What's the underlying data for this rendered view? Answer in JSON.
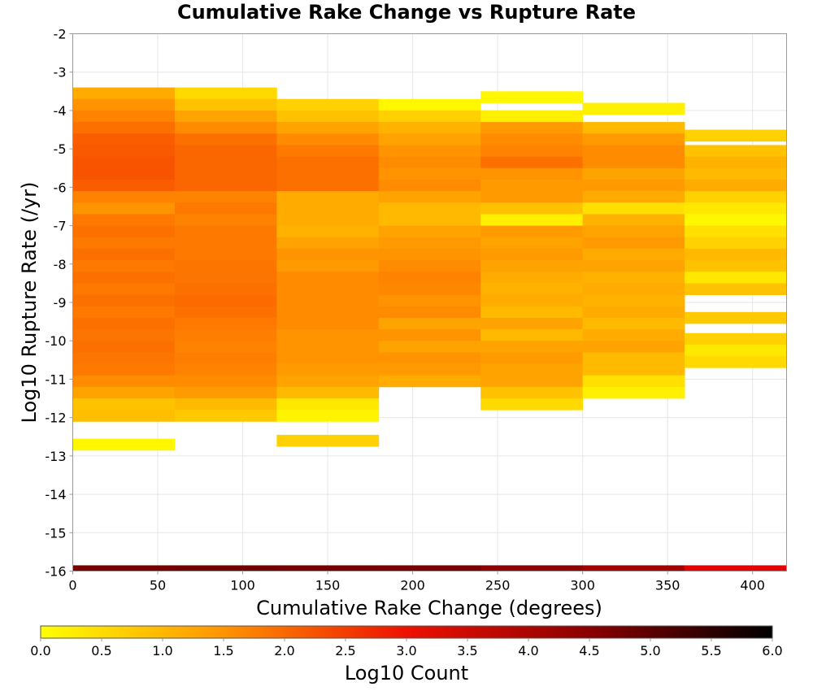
{
  "chart_data": {
    "type": "heatmap",
    "title": "Cumulative Rake Change vs Rupture Rate",
    "xlabel": "Cumulative Rake Change (degrees)",
    "ylabel": "Log10 Rupture Rate (/yr)",
    "xlim": [
      0,
      420
    ],
    "ylim": [
      -16,
      -2
    ],
    "x_ticks": [
      "0",
      "50",
      "100",
      "150",
      "200",
      "250",
      "300",
      "350",
      "400"
    ],
    "y_ticks": [
      "-2",
      "-3",
      "-4",
      "-5",
      "-6",
      "-7",
      "-8",
      "-9",
      "-10",
      "-11",
      "-12",
      "-13",
      "-14",
      "-15",
      "-16"
    ],
    "grid": true,
    "x_bin_width_degrees": 60,
    "y_bin_height_log10": 0.3,
    "colorbar": {
      "label": "Log10 Count",
      "range": [
        0,
        6
      ],
      "ticks": [
        "0.0",
        "0.5",
        "1.0",
        "1.5",
        "2.0",
        "2.5",
        "3.0",
        "3.5",
        "4.0",
        "4.5",
        "5.0",
        "5.5",
        "6.0"
      ],
      "colors": [
        "#ffff00",
        "#ff8c00",
        "#ee0000",
        "#880000",
        "#000000"
      ]
    },
    "columns": [
      {
        "x_start": 0,
        "x_end": 60,
        "cells": [
          [
            -3.55,
            1.1
          ],
          [
            -3.85,
            1.4
          ],
          [
            -4.15,
            1.6
          ],
          [
            -4.45,
            1.8
          ],
          [
            -4.75,
            2.0
          ],
          [
            -5.05,
            2.05
          ],
          [
            -5.35,
            2.1
          ],
          [
            -5.65,
            2.1
          ],
          [
            -5.95,
            2.0
          ],
          [
            -6.25,
            1.6
          ],
          [
            -6.55,
            1.4
          ],
          [
            -6.85,
            1.7
          ],
          [
            -7.15,
            1.8
          ],
          [
            -7.45,
            1.7
          ],
          [
            -7.75,
            1.8
          ],
          [
            -8.05,
            1.7
          ],
          [
            -8.35,
            1.8
          ],
          [
            -8.65,
            1.7
          ],
          [
            -8.95,
            1.8
          ],
          [
            -9.25,
            1.7
          ],
          [
            -9.55,
            1.8
          ],
          [
            -9.85,
            1.75
          ],
          [
            -10.15,
            1.8
          ],
          [
            -10.45,
            1.75
          ],
          [
            -10.75,
            1.7
          ],
          [
            -11.05,
            1.5
          ],
          [
            -11.35,
            1.2
          ],
          [
            -11.65,
            0.8
          ],
          [
            -11.95,
            0.85
          ],
          [
            -12.7,
            0.1
          ]
        ]
      },
      {
        "x_start": 60,
        "x_end": 120,
        "cells": [
          [
            -3.55,
            0.5
          ],
          [
            -3.85,
            0.8
          ],
          [
            -4.15,
            1.2
          ],
          [
            -4.45,
            1.5
          ],
          [
            -4.75,
            1.8
          ],
          [
            -5.05,
            1.9
          ],
          [
            -5.35,
            1.9
          ],
          [
            -5.65,
            1.9
          ],
          [
            -5.95,
            1.9
          ],
          [
            -6.25,
            1.6
          ],
          [
            -6.55,
            1.7
          ],
          [
            -6.85,
            1.6
          ],
          [
            -7.15,
            1.7
          ],
          [
            -7.45,
            1.7
          ],
          [
            -7.75,
            1.7
          ],
          [
            -8.05,
            1.75
          ],
          [
            -8.35,
            1.75
          ],
          [
            -8.65,
            1.8
          ],
          [
            -8.95,
            1.85
          ],
          [
            -9.25,
            1.8
          ],
          [
            -9.55,
            1.7
          ],
          [
            -9.85,
            1.65
          ],
          [
            -10.15,
            1.6
          ],
          [
            -10.45,
            1.65
          ],
          [
            -10.75,
            1.6
          ],
          [
            -11.05,
            1.5
          ],
          [
            -11.35,
            1.3
          ],
          [
            -11.65,
            0.9
          ],
          [
            -11.95,
            0.7
          ]
        ]
      },
      {
        "x_start": 120,
        "x_end": 180,
        "cells": [
          [
            -3.85,
            0.6
          ],
          [
            -4.15,
            0.8
          ],
          [
            -4.45,
            1.2
          ],
          [
            -4.75,
            1.5
          ],
          [
            -5.05,
            1.7
          ],
          [
            -5.35,
            1.8
          ],
          [
            -5.65,
            1.8
          ],
          [
            -5.95,
            1.8
          ],
          [
            -6.25,
            1.1
          ],
          [
            -6.55,
            1.1
          ],
          [
            -6.85,
            1.1
          ],
          [
            -7.15,
            1.0
          ],
          [
            -7.45,
            1.2
          ],
          [
            -7.75,
            1.4
          ],
          [
            -8.05,
            1.3
          ],
          [
            -8.35,
            1.5
          ],
          [
            -8.65,
            1.5
          ],
          [
            -8.95,
            1.5
          ],
          [
            -9.25,
            1.5
          ],
          [
            -9.55,
            1.5
          ],
          [
            -9.85,
            1.4
          ],
          [
            -10.15,
            1.4
          ],
          [
            -10.45,
            1.4
          ],
          [
            -10.75,
            1.3
          ],
          [
            -11.05,
            1.2
          ],
          [
            -11.35,
            0.9
          ],
          [
            -11.65,
            0.3
          ],
          [
            -11.95,
            0.15
          ],
          [
            -12.6,
            0.6
          ]
        ]
      },
      {
        "x_start": 180,
        "x_end": 240,
        "cells": [
          [
            -3.85,
            0.1
          ],
          [
            -4.15,
            0.6
          ],
          [
            -4.45,
            1.0
          ],
          [
            -4.75,
            1.2
          ],
          [
            -5.05,
            1.4
          ],
          [
            -5.35,
            1.5
          ],
          [
            -5.65,
            1.4
          ],
          [
            -5.95,
            1.5
          ],
          [
            -6.25,
            1.2
          ],
          [
            -6.55,
            0.9
          ],
          [
            -6.85,
            0.9
          ],
          [
            -7.15,
            1.2
          ],
          [
            -7.45,
            1.3
          ],
          [
            -7.75,
            1.4
          ],
          [
            -8.05,
            1.5
          ],
          [
            -8.35,
            1.6
          ],
          [
            -8.65,
            1.55
          ],
          [
            -8.95,
            1.4
          ],
          [
            -9.25,
            1.5
          ],
          [
            -9.55,
            1.2
          ],
          [
            -9.85,
            1.4
          ],
          [
            -10.15,
            1.2
          ],
          [
            -10.45,
            1.4
          ],
          [
            -10.75,
            1.3
          ],
          [
            -11.05,
            1.1
          ]
        ]
      },
      {
        "x_start": 240,
        "x_end": 300,
        "cells": [
          [
            -3.65,
            0.1
          ],
          [
            -4.15,
            0.2
          ],
          [
            -4.45,
            1.3
          ],
          [
            -4.75,
            1.5
          ],
          [
            -5.05,
            1.6
          ],
          [
            -5.35,
            1.8
          ],
          [
            -5.65,
            1.4
          ],
          [
            -5.95,
            1.3
          ],
          [
            -6.25,
            1.3
          ],
          [
            -6.55,
            0.8
          ],
          [
            -6.85,
            0.2
          ],
          [
            -7.15,
            1.3
          ],
          [
            -7.45,
            1.2
          ],
          [
            -7.75,
            1.3
          ],
          [
            -8.05,
            1.2
          ],
          [
            -8.35,
            1.1
          ],
          [
            -8.65,
            1.0
          ],
          [
            -8.95,
            1.1
          ],
          [
            -9.25,
            0.9
          ],
          [
            -9.55,
            1.2
          ],
          [
            -9.85,
            0.9
          ],
          [
            -10.15,
            1.2
          ],
          [
            -10.45,
            1.3
          ],
          [
            -10.75,
            1.2
          ],
          [
            -11.05,
            1.2
          ],
          [
            -11.35,
            0.8
          ],
          [
            -11.65,
            0.5
          ]
        ]
      },
      {
        "x_start": 300,
        "x_end": 360,
        "cells": [
          [
            -3.95,
            0.2
          ],
          [
            -4.45,
            0.9
          ],
          [
            -4.75,
            1.3
          ],
          [
            -5.05,
            1.5
          ],
          [
            -5.35,
            1.5
          ],
          [
            -5.65,
            1.2
          ],
          [
            -5.95,
            1.3
          ],
          [
            -6.25,
            1.1
          ],
          [
            -6.55,
            0.4
          ],
          [
            -6.85,
            1.0
          ],
          [
            -7.15,
            1.2
          ],
          [
            -7.45,
            1.3
          ],
          [
            -7.75,
            1.1
          ],
          [
            -8.05,
            1.2
          ],
          [
            -8.35,
            1.0
          ],
          [
            -8.65,
            1.1
          ],
          [
            -8.95,
            1.0
          ],
          [
            -9.25,
            1.1
          ],
          [
            -9.55,
            0.9
          ],
          [
            -9.85,
            1.1
          ],
          [
            -10.15,
            1.2
          ],
          [
            -10.45,
            0.9
          ],
          [
            -10.75,
            0.9
          ],
          [
            -11.05,
            0.4
          ],
          [
            -11.35,
            0.2
          ]
        ]
      },
      {
        "x_start": 360,
        "x_end": 420,
        "cells": [
          [
            -4.65,
            0.6
          ],
          [
            -5.05,
            0.8
          ],
          [
            -5.35,
            1.0
          ],
          [
            -5.65,
            0.9
          ],
          [
            -5.95,
            1.1
          ],
          [
            -6.25,
            0.6
          ],
          [
            -6.55,
            0.3
          ],
          [
            -6.85,
            0.1
          ],
          [
            -7.15,
            0.4
          ],
          [
            -7.45,
            0.6
          ],
          [
            -7.75,
            0.9
          ],
          [
            -8.05,
            0.8
          ],
          [
            -8.35,
            0.3
          ],
          [
            -8.65,
            0.8
          ],
          [
            -9.4,
            0.7
          ],
          [
            -9.95,
            0.6
          ],
          [
            -10.25,
            0.3
          ],
          [
            -10.55,
            0.5
          ]
        ]
      }
    ],
    "bottom_row": {
      "y": -15.95,
      "cells": [
        {
          "x_start": 0,
          "x_end": 60,
          "value": 4.7
        },
        {
          "x_start": 60,
          "x_end": 120,
          "value": 4.75
        },
        {
          "x_start": 120,
          "x_end": 180,
          "value": 4.7
        },
        {
          "x_start": 180,
          "x_end": 240,
          "value": 4.65
        },
        {
          "x_start": 240,
          "x_end": 300,
          "value": 4.4
        },
        {
          "x_start": 300,
          "x_end": 360,
          "value": 4.1
        },
        {
          "x_start": 360,
          "x_end": 420,
          "value": 3.1
        }
      ]
    }
  }
}
